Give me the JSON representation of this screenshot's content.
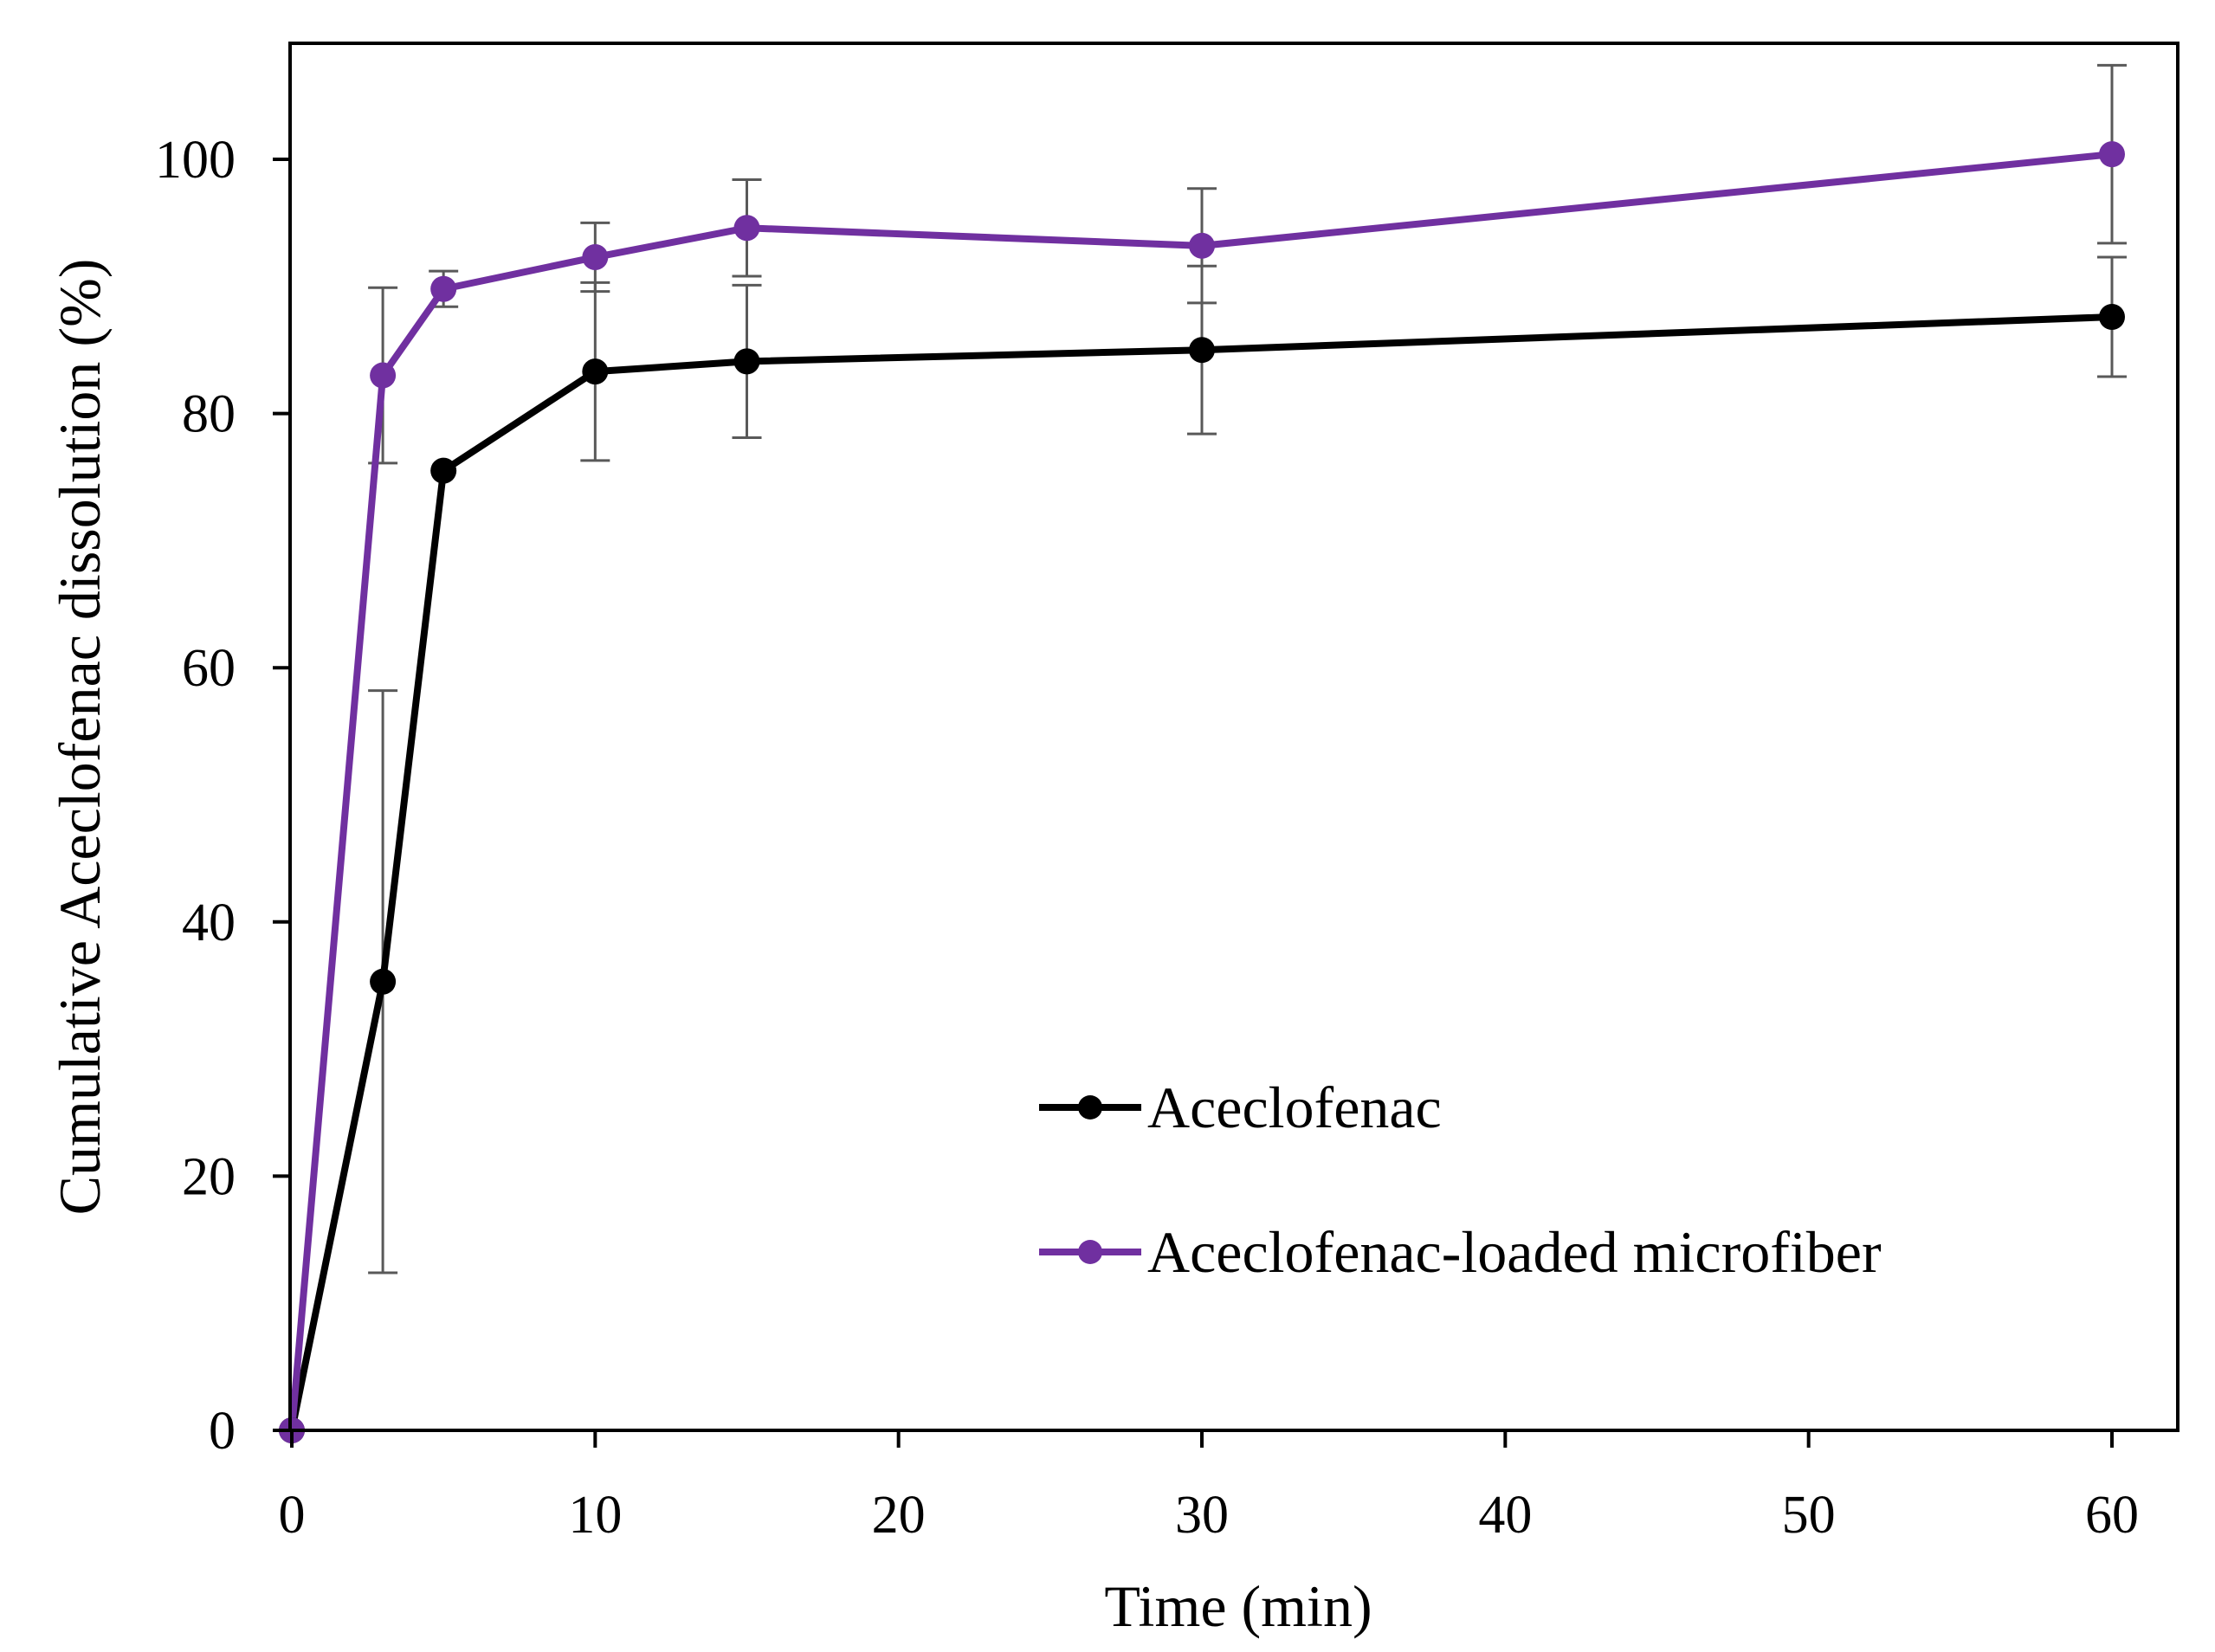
{
  "chart_data": {
    "type": "line",
    "title": "",
    "xlabel": "Time (min)",
    "ylabel": "Cumulative Aceclofenac dissolution (%)",
    "xlim": [
      0,
      62
    ],
    "ylim": [
      0,
      110
    ],
    "xticks": [
      0,
      10,
      20,
      30,
      40,
      50,
      60
    ],
    "yticks": [
      0,
      20,
      40,
      60,
      80,
      100
    ],
    "grid": false,
    "legend_position": "bottom-right",
    "series": [
      {
        "name": "Aceclofenac",
        "color": "#000000",
        "x": [
          0,
          3,
          5,
          10,
          15,
          30,
          60
        ],
        "y": [
          0,
          35.3,
          75.5,
          83.3,
          84.1,
          85.0,
          87.6
        ],
        "error": [
          0,
          22.9,
          0,
          7.0,
          6.0,
          6.6,
          4.7
        ]
      },
      {
        "name": "Aceclofenac-loaded microfiber",
        "color": "#7030A0",
        "x": [
          0,
          3,
          5,
          10,
          15,
          30,
          60
        ],
        "y": [
          0,
          83.0,
          89.8,
          92.3,
          94.6,
          93.2,
          100.4
        ],
        "error": [
          0,
          6.9,
          1.4,
          2.7,
          3.8,
          4.5,
          7.0
        ]
      }
    ],
    "errorbar_color": "#595959"
  }
}
